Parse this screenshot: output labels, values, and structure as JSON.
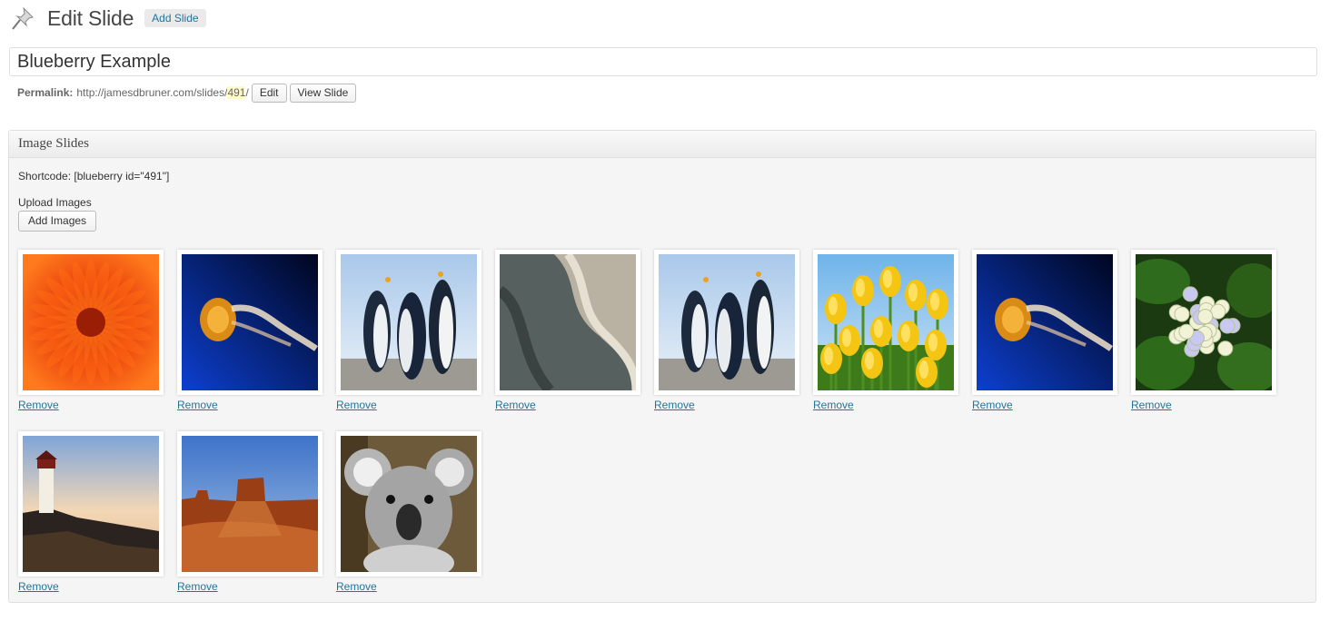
{
  "header": {
    "title": "Edit Slide",
    "add_new_label": "Add Slide",
    "icon": "pushpin-icon"
  },
  "post": {
    "title_value": "Blueberry Example"
  },
  "permalink": {
    "label": "Permalink:",
    "url_prefix": "http://jamesdbruner.com/slides/",
    "slug": "491",
    "url_suffix": "/",
    "edit_label": "Edit",
    "view_label": "View Slide"
  },
  "metabox": {
    "title": "Image Slides",
    "shortcode": "Shortcode: [blueberry id=\"491\"]",
    "upload_label": "Upload Images",
    "add_images_label": "Add Images",
    "remove_label": "Remove",
    "images": [
      {
        "subject": "orange-chrysanthemum-image"
      },
      {
        "subject": "jellyfish-image"
      },
      {
        "subject": "penguins-image"
      },
      {
        "subject": "marble-stone-image"
      },
      {
        "subject": "penguins-image"
      },
      {
        "subject": "yellow-tulips-image"
      },
      {
        "subject": "jellyfish-image"
      },
      {
        "subject": "hydrangea-image"
      },
      {
        "subject": "lighthouse-image"
      },
      {
        "subject": "desert-mesa-image"
      },
      {
        "subject": "koala-image"
      }
    ]
  },
  "colors": {
    "link": "#21759b",
    "permalink_highlight": "#fffbcc",
    "box_background": "#f5f5f5"
  }
}
